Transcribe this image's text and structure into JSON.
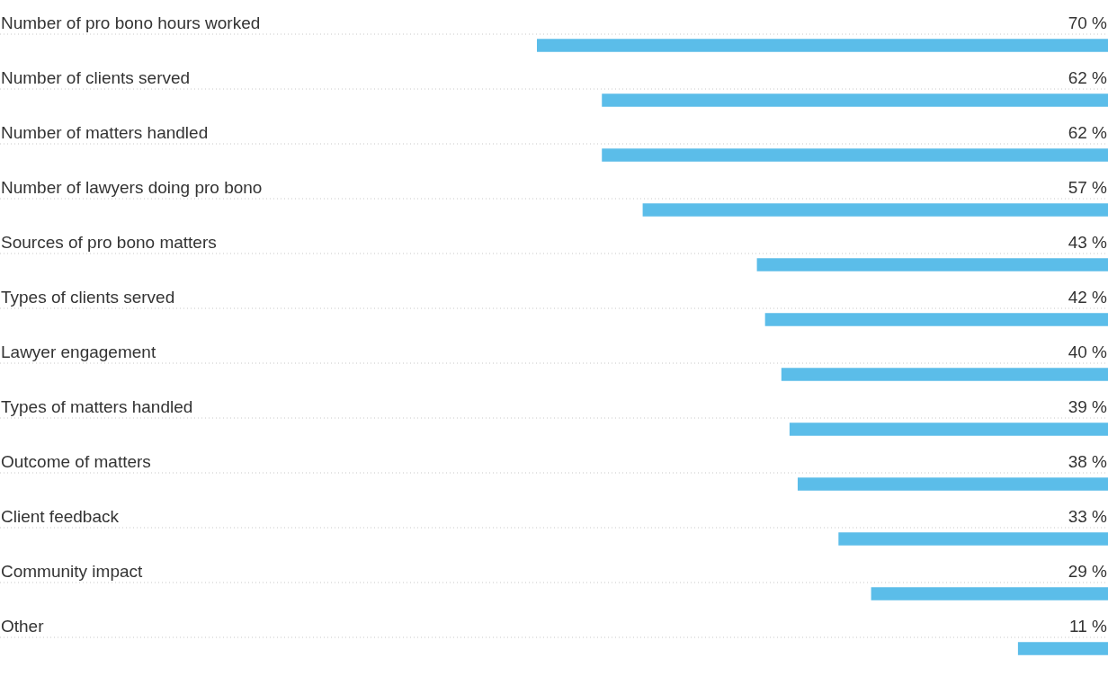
{
  "chart_data": {
    "type": "bar",
    "orientation": "horizontal",
    "grid": "y",
    "legend": false,
    "categories": [
      "Number of pro bono hours worked",
      "Number of clients served",
      "Number of matters handled",
      "Number of lawyers doing pro bono",
      "Sources of pro bono matters",
      "Types of clients served",
      "Lawyer engagement",
      "Types of matters handled",
      "Outcome of matters",
      "Client feedback",
      "Community impact",
      "Other"
    ],
    "values": [
      70,
      62,
      62,
      57,
      43,
      42,
      40,
      39,
      38,
      33,
      29,
      11
    ],
    "value_labels": [
      "70 %",
      "62 %",
      "62 %",
      "57 %",
      "43 %",
      "42 %",
      "40 %",
      "39 %",
      "38 %",
      "33 %",
      "29 %",
      "11 %"
    ],
    "color": "#5bbde9"
  }
}
